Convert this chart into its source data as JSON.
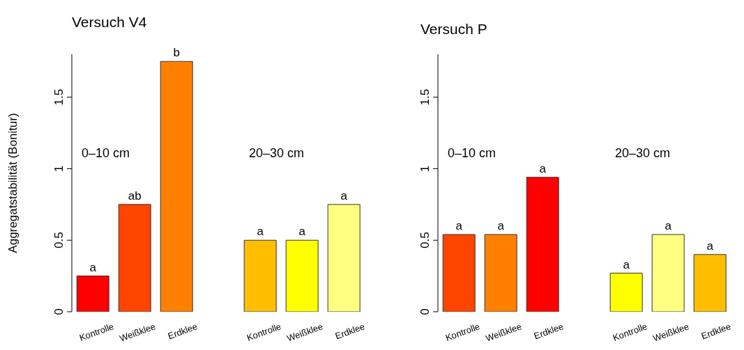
{
  "chart_data": [
    {
      "type": "bar",
      "title": "Versuch V4",
      "ylabel": "Aggregatstabilität (Bonitur)",
      "categories": [
        "Kontrolle",
        "Weißklee",
        "Erdklee",
        null,
        "Kontrolle",
        "Weißklee",
        "Erdklee"
      ],
      "values": [
        0.25,
        0.75,
        1.75,
        null,
        0.5,
        0.5,
        0.75
      ],
      "colors": [
        "#ff0000",
        "#ff4500",
        "#ff8000",
        "#ffffff",
        "#ffbf00",
        "#ffff00",
        "#ffff80"
      ],
      "value_labels": [
        "a",
        "ab",
        "b",
        null,
        "a",
        "a",
        "a"
      ],
      "ylim": [
        0,
        1.8
      ],
      "yticks": [
        0,
        0.5,
        1,
        1.5
      ],
      "annotations": [
        "0–10 cm",
        "20–30 cm"
      ]
    },
    {
      "type": "bar",
      "title": "Versuch P",
      "categories": [
        "Kontrolle",
        "Weißklee",
        "Erdklee",
        null,
        "Kontrolle",
        "Weißklee",
        "Erdklee"
      ],
      "values": [
        0.54,
        0.54,
        0.94,
        null,
        0.27,
        0.54,
        0.4
      ],
      "colors": [
        "#ff4500",
        "#ff8000",
        "#ff0000",
        "#ffffff",
        "#ffff00",
        "#ffff80",
        "#ffbf00"
      ],
      "value_labels": [
        "a",
        "a",
        "a",
        null,
        "a",
        "a",
        "a"
      ],
      "ylim": [
        0,
        1.8
      ],
      "yticks": [
        0,
        0.5,
        1,
        1.5
      ],
      "annotations": [
        "0–10 cm",
        "20–30 cm"
      ]
    }
  ]
}
